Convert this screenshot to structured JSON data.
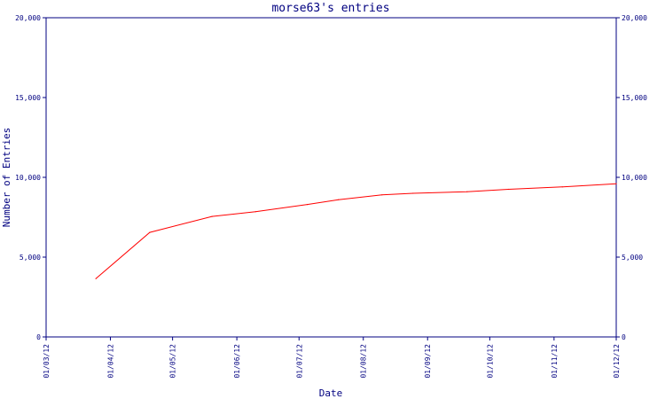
{
  "chart_data": {
    "type": "line",
    "title": "morse63's entries",
    "xlabel": "Date",
    "ylabel": "Number of Entries",
    "x_ticks": [
      "01/03/12",
      "01/04/12",
      "01/05/12",
      "01/06/12",
      "01/07/12",
      "01/08/12",
      "01/09/12",
      "01/10/12",
      "01/11/12",
      "01/12/12"
    ],
    "y_ticks": [
      "0",
      "5,000",
      "10,000",
      "15,000",
      "20,000"
    ],
    "ylim": [
      0,
      20000
    ],
    "xlim": [
      "2012-03-01",
      "2012-12-01"
    ],
    "grid": false,
    "right_axis": true,
    "series": [
      {
        "color": "#ff0000",
        "points": [
          {
            "x": "2012-03-25",
            "y": 3650
          },
          {
            "x": "2012-04-20",
            "y": 6550
          },
          {
            "x": "2012-05-20",
            "y": 7550
          },
          {
            "x": "2012-06-10",
            "y": 7850
          },
          {
            "x": "2012-07-05",
            "y": 8300
          },
          {
            "x": "2012-07-20",
            "y": 8600
          },
          {
            "x": "2012-08-10",
            "y": 8900
          },
          {
            "x": "2012-08-25",
            "y": 9000
          },
          {
            "x": "2012-09-20",
            "y": 9100
          },
          {
            "x": "2012-10-10",
            "y": 9250
          },
          {
            "x": "2012-11-05",
            "y": 9400
          },
          {
            "x": "2012-12-01",
            "y": 9600
          }
        ]
      }
    ]
  },
  "colors": {
    "axis": "#000080",
    "line": "#ff0000",
    "background": "#ffffff"
  }
}
